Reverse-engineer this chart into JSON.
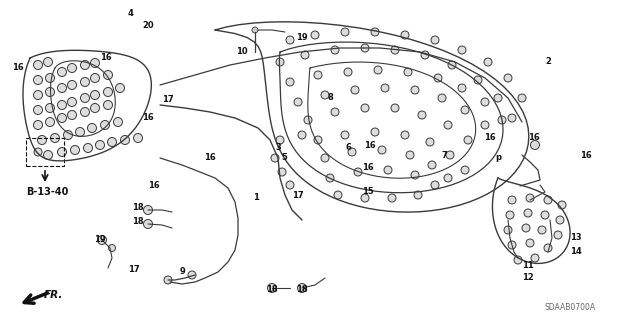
{
  "bg_color": "#ffffff",
  "line_color": "#3a3a3a",
  "text_color": "#111111",
  "fig_width": 6.4,
  "fig_height": 3.19,
  "dpi": 100,
  "watermark": "SDAAB0700A",
  "ref_label": "B-13-40",
  "fr_label": "FR.",
  "labels": [
    [
      "4",
      130,
      14
    ],
    [
      "20",
      148,
      26
    ],
    [
      "16",
      18,
      68
    ],
    [
      "16",
      106,
      58
    ],
    [
      "16",
      148,
      118
    ],
    [
      "16",
      154,
      185
    ],
    [
      "17",
      168,
      100
    ],
    [
      "16",
      210,
      158
    ],
    [
      "10",
      242,
      52
    ],
    [
      "19",
      302,
      38
    ],
    [
      "8",
      330,
      98
    ],
    [
      "3",
      278,
      148
    ],
    [
      "5",
      284,
      158
    ],
    [
      "6",
      348,
      148
    ],
    [
      "16",
      370,
      145
    ],
    [
      "16",
      368,
      168
    ],
    [
      "7",
      444,
      155
    ],
    [
      "16",
      490,
      138
    ],
    [
      "2",
      548,
      62
    ],
    [
      "16",
      534,
      138
    ],
    [
      "16",
      586,
      155
    ],
    [
      "15",
      368,
      192
    ],
    [
      "17",
      298,
      195
    ],
    [
      "1",
      256,
      198
    ],
    [
      "18",
      138,
      208
    ],
    [
      "18",
      138,
      222
    ],
    [
      "p",
      498,
      158
    ],
    [
      "19",
      100,
      240
    ],
    [
      "17",
      134,
      270
    ],
    [
      "9",
      182,
      272
    ],
    [
      "18",
      272,
      290
    ],
    [
      "18",
      302,
      290
    ],
    [
      "11",
      528,
      265
    ],
    [
      "12",
      528,
      278
    ],
    [
      "13",
      576,
      238
    ],
    [
      "14",
      576,
      252
    ]
  ]
}
